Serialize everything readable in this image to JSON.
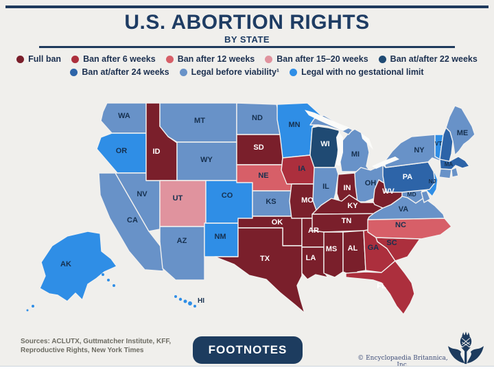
{
  "title": "U.S. ABORTION RIGHTS",
  "subtitle": "BY STATE",
  "legend": [
    {
      "key": "full_ban",
      "label": "Full ban",
      "color": "#7a1f2b"
    },
    {
      "key": "ban_6",
      "label": "Ban after 6 weeks",
      "color": "#ac2f3d"
    },
    {
      "key": "ban_12",
      "label": "Ban after 12 weeks",
      "color": "#d75f68"
    },
    {
      "key": "ban_15_20",
      "label": "Ban after 15–20 weeks",
      "color": "#e0939e"
    },
    {
      "key": "ban_22",
      "label": "Ban at/after 22 weeks",
      "color": "#1f4a73"
    },
    {
      "key": "ban_24",
      "label": "Ban at/after 24 weeks",
      "color": "#2d64a8"
    },
    {
      "key": "viability",
      "label": "Legal before viability¹",
      "color": "#6892c8"
    },
    {
      "key": "no_limit",
      "label": "Legal with no gestational limit",
      "color": "#2f8ee6"
    }
  ],
  "map": {
    "states": [
      {
        "id": "WA",
        "label": "WA",
        "category": "viability",
        "label_shade": "dark"
      },
      {
        "id": "OR",
        "label": "OR",
        "category": "no_limit",
        "label_shade": "dark"
      },
      {
        "id": "CA",
        "label": "CA",
        "category": "viability",
        "label_shade": "dark"
      },
      {
        "id": "NV",
        "label": "NV",
        "category": "viability",
        "label_shade": "dark"
      },
      {
        "id": "ID",
        "label": "ID",
        "category": "full_ban",
        "label_shade": "light"
      },
      {
        "id": "MT",
        "label": "MT",
        "category": "viability",
        "label_shade": "dark"
      },
      {
        "id": "WY",
        "label": "WY",
        "category": "viability",
        "label_shade": "dark"
      },
      {
        "id": "UT",
        "label": "UT",
        "category": "ban_15_20",
        "label_shade": "dark"
      },
      {
        "id": "AZ",
        "label": "AZ",
        "category": "viability",
        "label_shade": "dark"
      },
      {
        "id": "NM",
        "label": "NM",
        "category": "no_limit",
        "label_shade": "dark"
      },
      {
        "id": "CO",
        "label": "CO",
        "category": "no_limit",
        "label_shade": "dark"
      },
      {
        "id": "ND",
        "label": "ND",
        "category": "viability",
        "label_shade": "dark"
      },
      {
        "id": "SD",
        "label": "SD",
        "category": "full_ban",
        "label_shade": "light"
      },
      {
        "id": "NE",
        "label": "NE",
        "category": "ban_12",
        "label_shade": "dark"
      },
      {
        "id": "KS",
        "label": "KS",
        "category": "viability",
        "label_shade": "dark"
      },
      {
        "id": "OK",
        "label": "OK",
        "category": "full_ban",
        "label_shade": "light"
      },
      {
        "id": "TX",
        "label": "TX",
        "category": "full_ban",
        "label_shade": "light"
      },
      {
        "id": "MN",
        "label": "MN",
        "category": "no_limit",
        "label_shade": "dark"
      },
      {
        "id": "IA",
        "label": "IA",
        "category": "ban_6",
        "label_shade": "dark"
      },
      {
        "id": "MO",
        "label": "MO",
        "category": "full_ban",
        "label_shade": "light"
      },
      {
        "id": "AR",
        "label": "AR",
        "category": "full_ban",
        "label_shade": "light"
      },
      {
        "id": "LA",
        "label": "LA",
        "category": "full_ban",
        "label_shade": "light"
      },
      {
        "id": "WI",
        "label": "WI",
        "category": "ban_22",
        "label_shade": "light"
      },
      {
        "id": "IL",
        "label": "IL",
        "category": "viability",
        "label_shade": "dark"
      },
      {
        "id": "IN",
        "label": "IN",
        "category": "full_ban",
        "label_shade": "light"
      },
      {
        "id": "MI",
        "label": "MI",
        "category": "viability",
        "label_shade": "dark"
      },
      {
        "id": "OH",
        "label": "OH",
        "category": "viability",
        "label_shade": "dark"
      },
      {
        "id": "KY",
        "label": "KY",
        "category": "full_ban",
        "label_shade": "light"
      },
      {
        "id": "TN",
        "label": "TN",
        "category": "full_ban",
        "label_shade": "light"
      },
      {
        "id": "MS",
        "label": "MS",
        "category": "full_ban",
        "label_shade": "light"
      },
      {
        "id": "AL",
        "label": "AL",
        "category": "full_ban",
        "label_shade": "light"
      },
      {
        "id": "GA",
        "label": "GA",
        "category": "ban_6",
        "label_shade": "dark"
      },
      {
        "id": "FL",
        "label": "FL",
        "category": "ban_6",
        "label_shade": "light"
      },
      {
        "id": "SC",
        "label": "SC",
        "category": "ban_6",
        "label_shade": "dark"
      },
      {
        "id": "NC",
        "label": "NC",
        "category": "ban_12",
        "label_shade": "dark"
      },
      {
        "id": "VA",
        "label": "VA",
        "category": "viability",
        "label_shade": "dark"
      },
      {
        "id": "WV",
        "label": "WV",
        "category": "full_ban",
        "label_shade": "light"
      },
      {
        "id": "MD",
        "label": "MD",
        "category": "viability",
        "label_shade": "dark"
      },
      {
        "id": "DE",
        "label": "",
        "category": "viability",
        "label_shade": "dark"
      },
      {
        "id": "NJ",
        "label": "NJ",
        "category": "no_limit",
        "label_shade": "dark"
      },
      {
        "id": "PA",
        "label": "PA",
        "category": "ban_24",
        "label_shade": "light"
      },
      {
        "id": "NY",
        "label": "NY",
        "category": "viability",
        "label_shade": "dark"
      },
      {
        "id": "VT",
        "label": "VT",
        "category": "no_limit",
        "label_shade": "dark"
      },
      {
        "id": "NH",
        "label": "",
        "category": "ban_24",
        "label_shade": "dark"
      },
      {
        "id": "MA",
        "label": "MA",
        "category": "ban_24",
        "label_shade": "dark"
      },
      {
        "id": "CT",
        "label": "",
        "category": "viability",
        "label_shade": "dark"
      },
      {
        "id": "RI",
        "label": "",
        "category": "viability",
        "label_shade": "dark"
      },
      {
        "id": "ME",
        "label": "ME",
        "category": "viability",
        "label_shade": "dark"
      },
      {
        "id": "AK",
        "label": "AK",
        "category": "no_limit",
        "label_shade": "dark"
      },
      {
        "id": "HI",
        "label": "HI",
        "category": "no_limit",
        "label_shade": "dark"
      }
    ]
  },
  "footer": {
    "sources_line1": "Sources: ACLUTX, Guttmatcher Institute, KFF,",
    "sources_line2": "Reproductive Rights, New York Times",
    "footnotes_label": "FOOTNOTES",
    "copyright": "© Encyclopaedia Britannica, Inc."
  }
}
